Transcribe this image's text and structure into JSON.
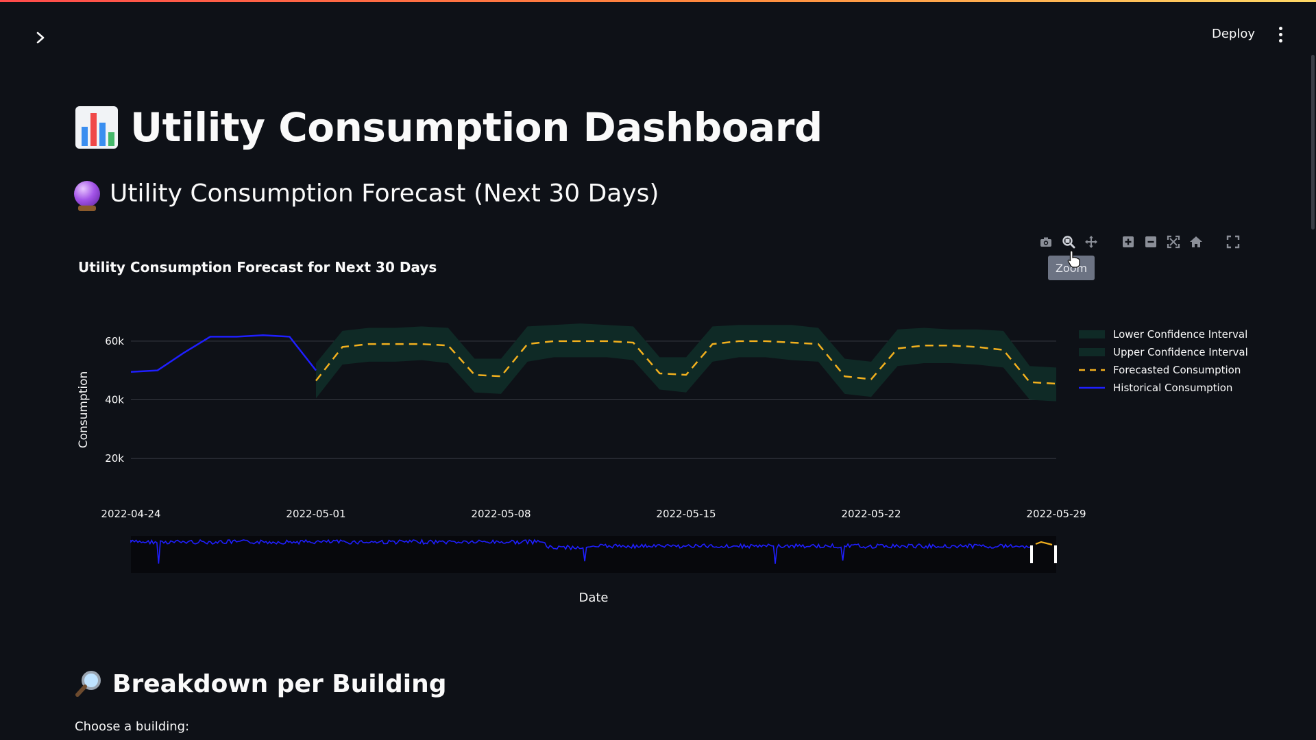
{
  "app": {
    "deploy_label": "Deploy",
    "page_title": "Utility Consumption Dashboard",
    "forecast_header": "Utility Consumption Forecast (Next 30 Days)",
    "breakdown_header": "Breakdown per Building",
    "choose_building_label": "Choose a building:"
  },
  "modebar": {
    "icons": [
      "camera-icon",
      "zoom-icon",
      "pan-icon",
      "zoom-in-icon",
      "zoom-out-icon",
      "autoscale-icon",
      "reset-axes-icon",
      "fullscreen-icon"
    ],
    "tooltip": "Zoom"
  },
  "colors": {
    "background": "#0e1117",
    "historical": "#1f1fff",
    "forecast": "#f2b01e",
    "confidence_band": "#0f2a26",
    "tooltip_bg": "#6c7383"
  },
  "chart_data": {
    "type": "line",
    "title": "Utility Consumption Forecast for Next 30 Days",
    "xlabel": "Date",
    "ylabel": "Consumption",
    "x_ticks": [
      "2022-04-24",
      "2022-05-01",
      "2022-05-08",
      "2022-05-15",
      "2022-05-22",
      "2022-05-29"
    ],
    "y_ticks": [
      "20k",
      "40k",
      "60k"
    ],
    "ylim": [
      10000,
      70000
    ],
    "xlim": [
      "2022-04-24",
      "2022-05-29"
    ],
    "legend": [
      "Lower Confidence Interval",
      "Upper Confidence Interval",
      "Forecasted Consumption",
      "Historical Consumption"
    ],
    "legend_position": "right",
    "grid": true,
    "range_slider": true,
    "series": [
      {
        "name": "Historical Consumption",
        "style": "solid",
        "color": "#1f1fff",
        "x": [
          "2022-04-24",
          "2022-04-25",
          "2022-04-26",
          "2022-04-27",
          "2022-04-28",
          "2022-04-29",
          "2022-04-30",
          "2022-05-01"
        ],
        "y": [
          49500,
          50000,
          56000,
          61500,
          61500,
          62000,
          61500,
          50000
        ]
      },
      {
        "name": "Forecasted Consumption",
        "style": "dashed",
        "color": "#f2b01e",
        "x": [
          "2022-05-01",
          "2022-05-02",
          "2022-05-03",
          "2022-05-04",
          "2022-05-05",
          "2022-05-06",
          "2022-05-07",
          "2022-05-08",
          "2022-05-09",
          "2022-05-10",
          "2022-05-11",
          "2022-05-12",
          "2022-05-13",
          "2022-05-14",
          "2022-05-15",
          "2022-05-16",
          "2022-05-17",
          "2022-05-18",
          "2022-05-19",
          "2022-05-20",
          "2022-05-21",
          "2022-05-22",
          "2022-05-23",
          "2022-05-24",
          "2022-05-25",
          "2022-05-26",
          "2022-05-27",
          "2022-05-28",
          "2022-05-29"
        ],
        "y": [
          46500,
          58000,
          59000,
          59000,
          59000,
          58500,
          48500,
          48000,
          59000,
          60000,
          60000,
          60000,
          59500,
          49000,
          48500,
          59000,
          60000,
          60000,
          59500,
          59000,
          48000,
          47000,
          57500,
          58500,
          58500,
          58000,
          57000,
          46000,
          45500
        ]
      },
      {
        "name": "Upper Confidence Interval",
        "style": "band",
        "color": "#0f2a26",
        "x": [
          "2022-05-01",
          "2022-05-02",
          "2022-05-03",
          "2022-05-04",
          "2022-05-05",
          "2022-05-06",
          "2022-05-07",
          "2022-05-08",
          "2022-05-09",
          "2022-05-10",
          "2022-05-11",
          "2022-05-12",
          "2022-05-13",
          "2022-05-14",
          "2022-05-15",
          "2022-05-16",
          "2022-05-17",
          "2022-05-18",
          "2022-05-19",
          "2022-05-20",
          "2022-05-21",
          "2022-05-22",
          "2022-05-23",
          "2022-05-24",
          "2022-05-25",
          "2022-05-26",
          "2022-05-27",
          "2022-05-28",
          "2022-05-29"
        ],
        "y": [
          52500,
          63500,
          64500,
          64500,
          65000,
          64500,
          54000,
          54000,
          65000,
          65500,
          66000,
          65500,
          65000,
          54500,
          54500,
          65000,
          65500,
          65500,
          65500,
          64500,
          54000,
          53000,
          64000,
          64500,
          64000,
          64000,
          63500,
          51500,
          51000
        ]
      },
      {
        "name": "Lower Confidence Interval",
        "style": "band",
        "color": "#0f2a26",
        "x": [
          "2022-05-01",
          "2022-05-02",
          "2022-05-03",
          "2022-05-04",
          "2022-05-05",
          "2022-05-06",
          "2022-05-07",
          "2022-05-08",
          "2022-05-09",
          "2022-05-10",
          "2022-05-11",
          "2022-05-12",
          "2022-05-13",
          "2022-05-14",
          "2022-05-15",
          "2022-05-16",
          "2022-05-17",
          "2022-05-18",
          "2022-05-19",
          "2022-05-20",
          "2022-05-21",
          "2022-05-22",
          "2022-05-23",
          "2022-05-24",
          "2022-05-25",
          "2022-05-26",
          "2022-05-27",
          "2022-05-28",
          "2022-05-29"
        ],
        "y": [
          40500,
          52000,
          53000,
          53000,
          53500,
          52500,
          42500,
          42000,
          53000,
          54500,
          54500,
          54500,
          53500,
          43500,
          42500,
          53000,
          54500,
          54500,
          53500,
          53000,
          42000,
          41000,
          51500,
          52500,
          52500,
          52000,
          51000,
          40000,
          39500
        ]
      }
    ]
  }
}
